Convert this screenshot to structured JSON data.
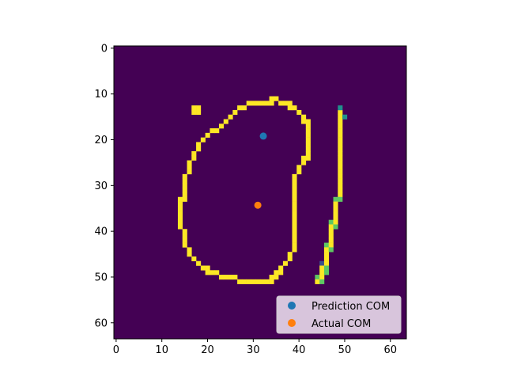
{
  "chart_data": {
    "type": "heatmap",
    "title": "",
    "xlabel": "",
    "ylabel": "",
    "image_size": [
      64,
      64
    ],
    "xlim": [
      -0.5,
      63.5
    ],
    "ylim": [
      63.5,
      -0.5
    ],
    "x_ticks": [
      0,
      10,
      20,
      30,
      40,
      50,
      60
    ],
    "y_ticks": [
      0,
      10,
      20,
      30,
      40,
      50,
      60
    ],
    "colormap": {
      "background": "#440154",
      "foreground": "#fde725",
      "mid_high": "#5ec962",
      "mid": "#21918c",
      "mid_low": "#3b528b"
    },
    "pixels": [
      {
        "x": 17,
        "y": 13,
        "v": 1
      },
      {
        "x": 18,
        "y": 13,
        "v": 1
      },
      {
        "x": 17,
        "y": 14,
        "v": 1
      },
      {
        "x": 18,
        "y": 14,
        "v": 1
      },
      {
        "x": 34,
        "y": 11,
        "v": 1
      },
      {
        "x": 35,
        "y": 11,
        "v": 1
      },
      {
        "x": 29,
        "y": 12,
        "v": 1
      },
      {
        "x": 30,
        "y": 12,
        "v": 1
      },
      {
        "x": 31,
        "y": 12,
        "v": 1
      },
      {
        "x": 32,
        "y": 12,
        "v": 1
      },
      {
        "x": 33,
        "y": 12,
        "v": 1
      },
      {
        "x": 34,
        "y": 12,
        "v": 1
      },
      {
        "x": 36,
        "y": 12,
        "v": 1
      },
      {
        "x": 37,
        "y": 12,
        "v": 1
      },
      {
        "x": 38,
        "y": 12,
        "v": 1
      },
      {
        "x": 27,
        "y": 13,
        "v": 1
      },
      {
        "x": 28,
        "y": 13,
        "v": 1
      },
      {
        "x": 38,
        "y": 13,
        "v": 1
      },
      {
        "x": 39,
        "y": 13,
        "v": 1
      },
      {
        "x": 26,
        "y": 14,
        "v": 1
      },
      {
        "x": 40,
        "y": 14,
        "v": 1
      },
      {
        "x": 49,
        "y": 14,
        "v": 1
      },
      {
        "x": 49,
        "y": 13,
        "v": 0.35
      },
      {
        "x": 25,
        "y": 15,
        "v": 1
      },
      {
        "x": 41,
        "y": 15,
        "v": 1
      },
      {
        "x": 49,
        "y": 15,
        "v": 1
      },
      {
        "x": 50,
        "y": 15,
        "v": 0.35
      },
      {
        "x": 24,
        "y": 16,
        "v": 1
      },
      {
        "x": 41,
        "y": 16,
        "v": 1
      },
      {
        "x": 42,
        "y": 16,
        "v": 1
      },
      {
        "x": 49,
        "y": 16,
        "v": 1
      },
      {
        "x": 23,
        "y": 17,
        "v": 1
      },
      {
        "x": 42,
        "y": 17,
        "v": 1
      },
      {
        "x": 49,
        "y": 17,
        "v": 1
      },
      {
        "x": 21,
        "y": 18,
        "v": 1
      },
      {
        "x": 22,
        "y": 18,
        "v": 1
      },
      {
        "x": 42,
        "y": 18,
        "v": 1
      },
      {
        "x": 49,
        "y": 18,
        "v": 1
      },
      {
        "x": 20,
        "y": 19,
        "v": 1
      },
      {
        "x": 42,
        "y": 19,
        "v": 1
      },
      {
        "x": 49,
        "y": 19,
        "v": 1
      },
      {
        "x": 19,
        "y": 20,
        "v": 1
      },
      {
        "x": 42,
        "y": 20,
        "v": 1
      },
      {
        "x": 49,
        "y": 20,
        "v": 1
      },
      {
        "x": 18,
        "y": 21,
        "v": 1
      },
      {
        "x": 42,
        "y": 21,
        "v": 1
      },
      {
        "x": 49,
        "y": 21,
        "v": 1
      },
      {
        "x": 18,
        "y": 22,
        "v": 1
      },
      {
        "x": 42,
        "y": 22,
        "v": 1
      },
      {
        "x": 49,
        "y": 22,
        "v": 1
      },
      {
        "x": 17,
        "y": 23,
        "v": 1
      },
      {
        "x": 42,
        "y": 23,
        "v": 1
      },
      {
        "x": 49,
        "y": 23,
        "v": 1
      },
      {
        "x": 17,
        "y": 24,
        "v": 1
      },
      {
        "x": 41,
        "y": 24,
        "v": 1
      },
      {
        "x": 42,
        "y": 24,
        "v": 1
      },
      {
        "x": 49,
        "y": 24,
        "v": 1
      },
      {
        "x": 16,
        "y": 25,
        "v": 1
      },
      {
        "x": 41,
        "y": 25,
        "v": 1
      },
      {
        "x": 49,
        "y": 25,
        "v": 1
      },
      {
        "x": 16,
        "y": 26,
        "v": 1
      },
      {
        "x": 40,
        "y": 26,
        "v": 1
      },
      {
        "x": 49,
        "y": 26,
        "v": 1
      },
      {
        "x": 16,
        "y": 27,
        "v": 1
      },
      {
        "x": 40,
        "y": 27,
        "v": 1
      },
      {
        "x": 49,
        "y": 27,
        "v": 1
      },
      {
        "x": 15,
        "y": 28,
        "v": 1
      },
      {
        "x": 39,
        "y": 28,
        "v": 1
      },
      {
        "x": 49,
        "y": 28,
        "v": 1
      },
      {
        "x": 15,
        "y": 29,
        "v": 1
      },
      {
        "x": 39,
        "y": 29,
        "v": 1
      },
      {
        "x": 49,
        "y": 29,
        "v": 1
      },
      {
        "x": 15,
        "y": 30,
        "v": 1
      },
      {
        "x": 39,
        "y": 30,
        "v": 1
      },
      {
        "x": 49,
        "y": 30,
        "v": 1
      },
      {
        "x": 15,
        "y": 31,
        "v": 1
      },
      {
        "x": 39,
        "y": 31,
        "v": 1
      },
      {
        "x": 49,
        "y": 31,
        "v": 1
      },
      {
        "x": 15,
        "y": 32,
        "v": 1
      },
      {
        "x": 39,
        "y": 32,
        "v": 1
      },
      {
        "x": 49,
        "y": 32,
        "v": 1
      },
      {
        "x": 14,
        "y": 33,
        "v": 1
      },
      {
        "x": 15,
        "y": 33,
        "v": 1
      },
      {
        "x": 39,
        "y": 33,
        "v": 1
      },
      {
        "x": 48,
        "y": 33,
        "v": 0.6
      },
      {
        "x": 49,
        "y": 33,
        "v": 0.6
      },
      {
        "x": 14,
        "y": 34,
        "v": 1
      },
      {
        "x": 39,
        "y": 34,
        "v": 1
      },
      {
        "x": 48,
        "y": 34,
        "v": 1
      },
      {
        "x": 14,
        "y": 35,
        "v": 1
      },
      {
        "x": 39,
        "y": 35,
        "v": 1
      },
      {
        "x": 48,
        "y": 35,
        "v": 1
      },
      {
        "x": 14,
        "y": 36,
        "v": 1
      },
      {
        "x": 39,
        "y": 36,
        "v": 1
      },
      {
        "x": 48,
        "y": 36,
        "v": 1
      },
      {
        "x": 14,
        "y": 37,
        "v": 1
      },
      {
        "x": 39,
        "y": 37,
        "v": 1
      },
      {
        "x": 48,
        "y": 37,
        "v": 1
      },
      {
        "x": 14,
        "y": 38,
        "v": 1
      },
      {
        "x": 39,
        "y": 38,
        "v": 1
      },
      {
        "x": 47,
        "y": 38,
        "v": 0.6
      },
      {
        "x": 48,
        "y": 38,
        "v": 1
      },
      {
        "x": 14,
        "y": 39,
        "v": 1
      },
      {
        "x": 39,
        "y": 39,
        "v": 1
      },
      {
        "x": 47,
        "y": 39,
        "v": 1
      },
      {
        "x": 48,
        "y": 39,
        "v": 0.6
      },
      {
        "x": 15,
        "y": 40,
        "v": 1
      },
      {
        "x": 39,
        "y": 40,
        "v": 1
      },
      {
        "x": 47,
        "y": 40,
        "v": 1
      },
      {
        "x": 15,
        "y": 41,
        "v": 1
      },
      {
        "x": 39,
        "y": 41,
        "v": 1
      },
      {
        "x": 47,
        "y": 41,
        "v": 1
      },
      {
        "x": 15,
        "y": 42,
        "v": 1
      },
      {
        "x": 39,
        "y": 42,
        "v": 1
      },
      {
        "x": 47,
        "y": 42,
        "v": 1
      },
      {
        "x": 15,
        "y": 43,
        "v": 1
      },
      {
        "x": 39,
        "y": 43,
        "v": 1
      },
      {
        "x": 46,
        "y": 43,
        "v": 0.6
      },
      {
        "x": 47,
        "y": 43,
        "v": 1
      },
      {
        "x": 16,
        "y": 44,
        "v": 1
      },
      {
        "x": 39,
        "y": 44,
        "v": 1
      },
      {
        "x": 46,
        "y": 44,
        "v": 1
      },
      {
        "x": 47,
        "y": 44,
        "v": 0.6
      },
      {
        "x": 16,
        "y": 45,
        "v": 1
      },
      {
        "x": 38,
        "y": 45,
        "v": 1
      },
      {
        "x": 46,
        "y": 45,
        "v": 1
      },
      {
        "x": 17,
        "y": 46,
        "v": 1
      },
      {
        "x": 38,
        "y": 46,
        "v": 1
      },
      {
        "x": 46,
        "y": 46,
        "v": 1
      },
      {
        "x": 18,
        "y": 47,
        "v": 1
      },
      {
        "x": 37,
        "y": 47,
        "v": 1
      },
      {
        "x": 45,
        "y": 47,
        "v": 0.3
      },
      {
        "x": 46,
        "y": 47,
        "v": 1
      },
      {
        "x": 19,
        "y": 48,
        "v": 1
      },
      {
        "x": 20,
        "y": 48,
        "v": 1
      },
      {
        "x": 36,
        "y": 48,
        "v": 1
      },
      {
        "x": 45,
        "y": 48,
        "v": 1
      },
      {
        "x": 46,
        "y": 48,
        "v": 0.6
      },
      {
        "x": 20,
        "y": 49,
        "v": 1
      },
      {
        "x": 21,
        "y": 49,
        "v": 1
      },
      {
        "x": 22,
        "y": 49,
        "v": 1
      },
      {
        "x": 35,
        "y": 49,
        "v": 1
      },
      {
        "x": 36,
        "y": 49,
        "v": 1
      },
      {
        "x": 45,
        "y": 49,
        "v": 1
      },
      {
        "x": 46,
        "y": 49,
        "v": 0.6
      },
      {
        "x": 23,
        "y": 50,
        "v": 1
      },
      {
        "x": 24,
        "y": 50,
        "v": 1
      },
      {
        "x": 25,
        "y": 50,
        "v": 1
      },
      {
        "x": 26,
        "y": 50,
        "v": 1
      },
      {
        "x": 34,
        "y": 50,
        "v": 1
      },
      {
        "x": 35,
        "y": 50,
        "v": 1
      },
      {
        "x": 44,
        "y": 50,
        "v": 0.6
      },
      {
        "x": 45,
        "y": 50,
        "v": 1
      },
      {
        "x": 27,
        "y": 51,
        "v": 1
      },
      {
        "x": 28,
        "y": 51,
        "v": 1
      },
      {
        "x": 29,
        "y": 51,
        "v": 1
      },
      {
        "x": 30,
        "y": 51,
        "v": 1
      },
      {
        "x": 31,
        "y": 51,
        "v": 1
      },
      {
        "x": 32,
        "y": 51,
        "v": 1
      },
      {
        "x": 33,
        "y": 51,
        "v": 1
      },
      {
        "x": 34,
        "y": 51,
        "v": 1
      },
      {
        "x": 44,
        "y": 51,
        "v": 1
      },
      {
        "x": 45,
        "y": 51,
        "v": 0.6
      }
    ],
    "series": [
      {
        "name": "Prediction COM",
        "type": "scatter",
        "color": "#1f77b4",
        "points": [
          {
            "x": 32.2,
            "y": 19.2
          }
        ]
      },
      {
        "name": "Actual COM",
        "type": "scatter",
        "color": "#ff7f0e",
        "points": [
          {
            "x": 31.0,
            "y": 34.3
          }
        ]
      }
    ],
    "legend": {
      "location": "lower right",
      "background": "#d8c5dc"
    },
    "grid": false
  }
}
